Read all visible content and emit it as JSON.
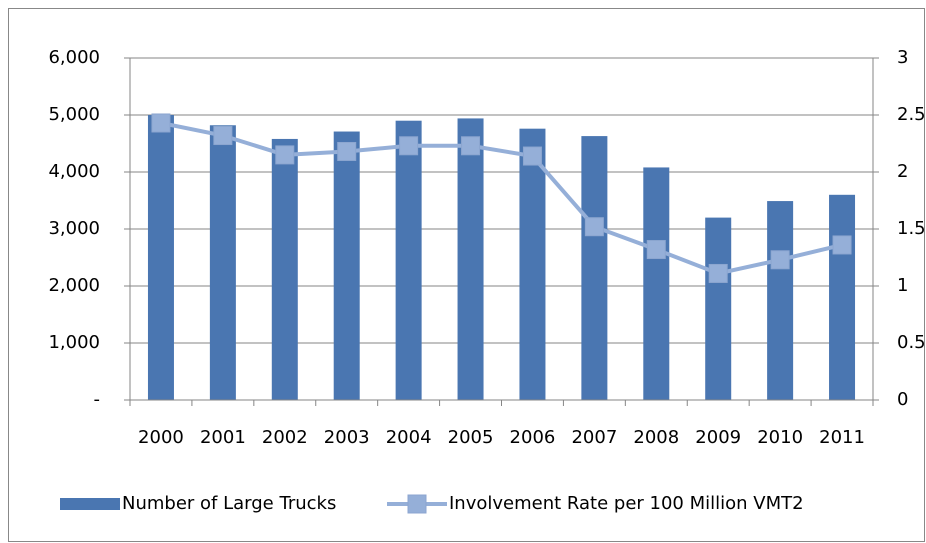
{
  "chart_data": {
    "type": "bar-line",
    "categories": [
      "2000",
      "2001",
      "2002",
      "2003",
      "2004",
      "2005",
      "2006",
      "2007",
      "2008",
      "2009",
      "2010",
      "2011"
    ],
    "series": [
      {
        "name": "Number of Large Trucks",
        "type": "bar",
        "color": "#4a76b1",
        "values": [
          5000,
          4820,
          4580,
          4710,
          4900,
          4940,
          4760,
          4630,
          4080,
          3200,
          3490,
          3600
        ]
      },
      {
        "name": "Involvement Rate per 100 Million VMT2",
        "type": "line",
        "axis": "y2",
        "color": "#95afd8",
        "values": [
          2.43,
          2.32,
          2.15,
          2.18,
          2.23,
          2.23,
          2.14,
          1.52,
          1.32,
          1.11,
          1.23,
          1.36
        ]
      }
    ],
    "ylim": [
      0,
      6000
    ],
    "yticks": [
      {
        "value": 0,
        "label": "-"
      },
      {
        "value": 1000,
        "label": "1,000"
      },
      {
        "value": 2000,
        "label": "2,000"
      },
      {
        "value": 3000,
        "label": "3,000"
      },
      {
        "value": 4000,
        "label": "4,000"
      },
      {
        "value": 5000,
        "label": "5,000"
      },
      {
        "value": 6000,
        "label": "6,000"
      }
    ],
    "y2lim": [
      0,
      3
    ],
    "y2ticks": [
      0,
      0.5,
      1,
      1.5,
      2,
      2.5,
      3
    ],
    "grid": true,
    "legend": "bottom"
  }
}
